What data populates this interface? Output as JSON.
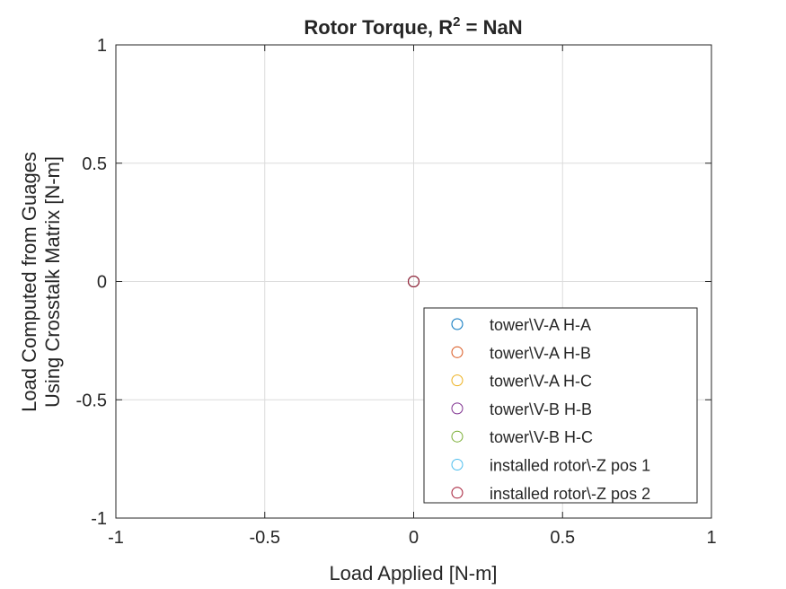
{
  "chart_data": {
    "type": "scatter",
    "title": "Rotor Torque, R",
    "title_superscript": "2",
    "title_suffix": " = NaN",
    "xlabel": "Load Applied [N-m]",
    "ylabel": [
      "Load Computed from Guages",
      "Using Crosstalk Matrix [N-m]"
    ],
    "xlim": [
      -1,
      1
    ],
    "ylim": [
      -1,
      1
    ],
    "xticks": [
      -1,
      -0.5,
      0,
      0.5,
      1
    ],
    "yticks": [
      -1,
      -0.5,
      0,
      0.5,
      1
    ],
    "xtick_labels": [
      "-1",
      "-0.5",
      "0",
      "0.5",
      "1"
    ],
    "ytick_labels": [
      "-1",
      "-0.5",
      "0",
      "0.5",
      "1"
    ],
    "grid": true,
    "legend_position": "bottom-right",
    "marker": "open-circle",
    "series": [
      {
        "name": "tower\\V-A H-A",
        "color": "#0072BD",
        "x": [
          0
        ],
        "y": [
          0
        ]
      },
      {
        "name": "tower\\V-A H-B",
        "color": "#D95319",
        "x": [
          0
        ],
        "y": [
          0
        ]
      },
      {
        "name": "tower\\V-A H-C",
        "color": "#EDB120",
        "x": [
          0
        ],
        "y": [
          0
        ]
      },
      {
        "name": "tower\\V-B H-B",
        "color": "#7E2F8E",
        "x": [
          0
        ],
        "y": [
          0
        ]
      },
      {
        "name": "tower\\V-B H-C",
        "color": "#77AC30",
        "x": [
          0
        ],
        "y": [
          0
        ]
      },
      {
        "name": "installed rotor\\-Z pos 1",
        "color": "#4DBEEE",
        "x": [
          0
        ],
        "y": [
          0
        ]
      },
      {
        "name": "installed rotor\\-Z pos 2",
        "color": "#A2142F",
        "x": [
          0
        ],
        "y": [
          0
        ]
      }
    ]
  }
}
